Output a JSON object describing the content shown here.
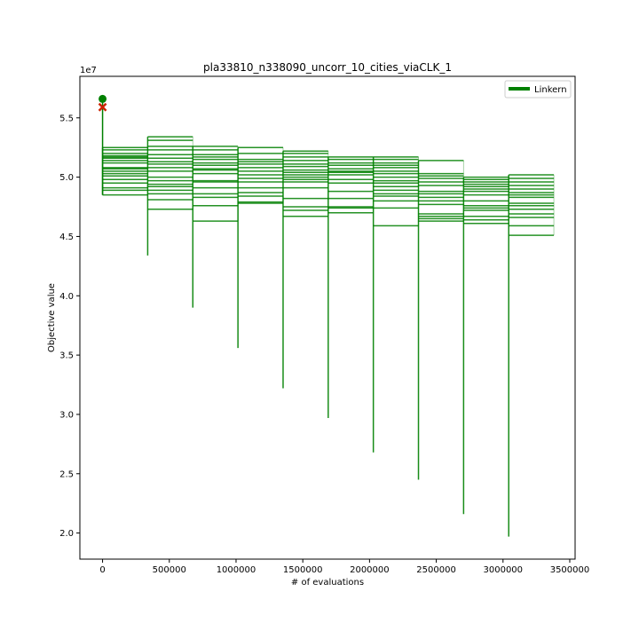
{
  "chart_data": {
    "type": "line",
    "title": "pla33810_n338090_uncorr_10_cities_viaCLK_1",
    "xlabel": "# of evaluations",
    "ylabel": "Objective value",
    "y_offset_text": "1e7",
    "xlim": [
      -170000,
      3540000
    ],
    "ylim": [
      17800000,
      58500000
    ],
    "x_ticks": [
      0,
      500000,
      1000000,
      1500000,
      2000000,
      2500000,
      3000000,
      3500000
    ],
    "x_tick_labels": [
      "0",
      "500000",
      "1000000",
      "1500000",
      "2000000",
      "2500000",
      "3000000",
      "3500000"
    ],
    "y_ticks": [
      20000000,
      25000000,
      30000000,
      35000000,
      40000000,
      45000000,
      50000000,
      55000000
    ],
    "y_tick_labels": [
      "2.0",
      "2.5",
      "3.0",
      "3.5",
      "4.0",
      "4.5",
      "5.0",
      "5.5"
    ],
    "grid": false,
    "legend_position": "top-right",
    "series": [
      {
        "name": "Linkern",
        "color": "#008000",
        "segments": [
          {
            "x_start": 0,
            "x_end": 338090,
            "min": 48500000,
            "levels": [
              48500000,
              48900000,
              49100000,
              49500000,
              49800000,
              50100000,
              50300000,
              50500000,
              50700000,
              50800000,
              51200000,
              51400000,
              51600000,
              51700000,
              51800000,
              52000000,
              52300000,
              52500000
            ]
          },
          {
            "x_start": 338090,
            "x_end": 676180,
            "min": 43400000,
            "levels": [
              47300000,
              48100000,
              48600000,
              48900000,
              49200000,
              49400000,
              49700000,
              50000000,
              50500000,
              50800000,
              51100000,
              51300000,
              51600000,
              51900000,
              52300000,
              52600000,
              53100000,
              53400000
            ]
          },
          {
            "x_start": 676180,
            "x_end": 1014270,
            "min": 39000000,
            "levels": [
              46300000,
              47600000,
              48300000,
              48600000,
              49100000,
              49600000,
              49700000,
              50300000,
              50600000,
              50700000,
              51000000,
              51200000,
              51500000,
              51700000,
              51900000,
              52300000,
              52600000
            ]
          },
          {
            "x_start": 1014270,
            "x_end": 1352360,
            "min": 35600000,
            "levels": [
              47800000,
              47900000,
              48400000,
              48700000,
              49100000,
              49600000,
              49900000,
              50200000,
              50500000,
              50800000,
              51100000,
              51300000,
              51500000,
              52000000,
              52500000
            ]
          },
          {
            "x_start": 1352360,
            "x_end": 1690450,
            "min": 32200000,
            "levels": [
              46700000,
              47200000,
              47500000,
              48200000,
              49100000,
              49600000,
              49800000,
              50000000,
              50200000,
              50400000,
              50600000,
              50900000,
              51100000,
              51400000,
              51700000,
              52000000,
              52200000
            ]
          },
          {
            "x_start": 1690450,
            "x_end": 2028540,
            "min": 29700000,
            "levels": [
              47000000,
              47400000,
              47500000,
              48200000,
              48800000,
              49500000,
              49800000,
              50200000,
              50400000,
              50500000,
              50700000,
              51000000,
              51200000,
              51500000,
              51700000
            ]
          },
          {
            "x_start": 2028540,
            "x_end": 2366630,
            "min": 26800000,
            "levels": [
              45900000,
              47400000,
              48000000,
              48400000,
              48600000,
              48900000,
              49200000,
              49500000,
              49700000,
              50000000,
              50300000,
              50500000,
              50800000,
              51000000,
              51200000,
              51500000,
              51700000
            ]
          },
          {
            "x_start": 2366630,
            "x_end": 2704720,
            "min": 24500000,
            "levels": [
              46300000,
              46500000,
              46700000,
              46900000,
              47700000,
              48000000,
              48300000,
              48600000,
              48800000,
              49300000,
              49600000,
              49900000,
              50100000,
              50300000,
              51400000
            ]
          },
          {
            "x_start": 2704720,
            "x_end": 3042810,
            "min": 21600000,
            "levels": [
              46100000,
              46400000,
              46700000,
              47200000,
              47400000,
              47600000,
              48000000,
              48500000,
              48800000,
              49000000,
              49200000,
              49400000,
              49600000,
              49800000,
              50000000
            ]
          },
          {
            "x_start": 3042810,
            "x_end": 3380900,
            "min": 19700000,
            "levels": [
              45100000,
              45900000,
              46600000,
              46900000,
              47300000,
              47600000,
              47800000,
              48300000,
              48500000,
              48700000,
              49000000,
              49300000,
              49600000,
              49900000,
              50200000
            ]
          }
        ],
        "start_point": {
          "x": 0,
          "y": 56600000,
          "color": "#008000"
        },
        "best_marker": {
          "x": 0,
          "y": 55900000,
          "color": "#cc2200"
        }
      }
    ]
  }
}
